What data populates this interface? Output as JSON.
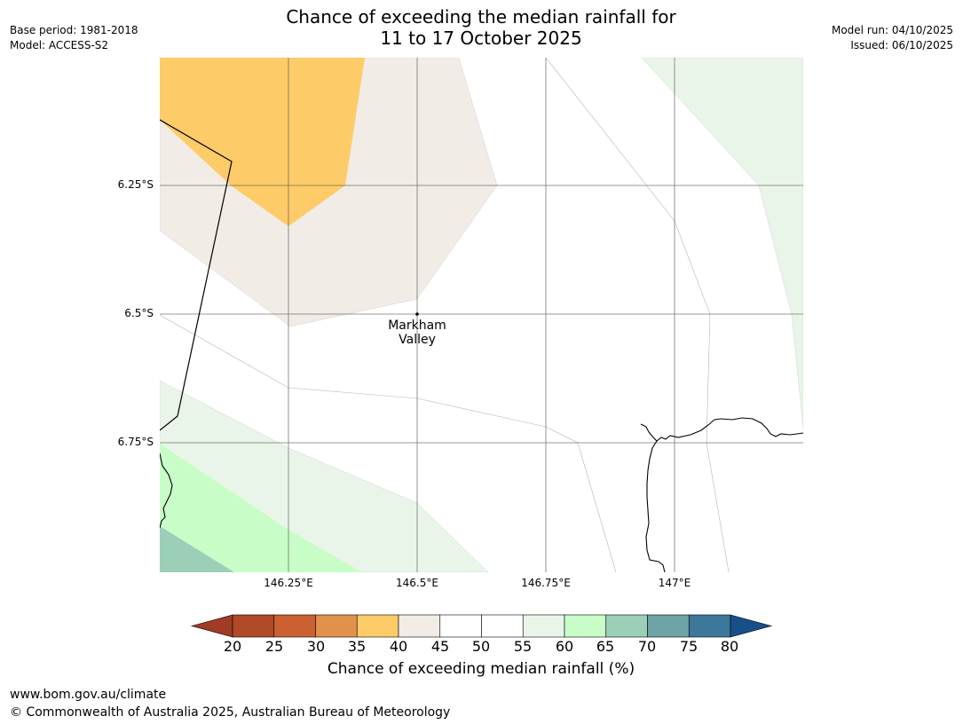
{
  "title": {
    "line1": "Chance of exceeding the median rainfall for",
    "line2": "11 to 17 October 2025"
  },
  "meta_left": {
    "base_period": "Base period: 1981-2018",
    "model": "Model: ACCESS-S2"
  },
  "meta_right": {
    "model_run": "Model run: 04/10/2025",
    "issued": "Issued: 06/10/2025"
  },
  "map": {
    "lat_labels": [
      "6.25°S",
      "6.5°S",
      "6.75°S"
    ],
    "lon_labels": [
      "146.25°E",
      "146.5°E",
      "146.75°E",
      "147°E"
    ],
    "place": {
      "name_line1": "Markham",
      "name_line2": "Valley"
    },
    "colors": {
      "band_35_40": "#fecb69",
      "band_40_45": "#f1ece6",
      "band_55_60": "#eaf5e9",
      "band_60_65": "#c9fdc8",
      "band_65_70": "#9ccfb8"
    }
  },
  "colorbar": {
    "label": "Chance of exceeding median rainfall (%)",
    "ticks": [
      "20",
      "25",
      "30",
      "35",
      "40",
      "45",
      "50",
      "55",
      "60",
      "65",
      "70",
      "75",
      "80"
    ],
    "colors": [
      "#a13b26",
      "#b04a26",
      "#cb6130",
      "#e1914a",
      "#fecb69",
      "#f1ece6",
      "#ffffff",
      "#ffffff",
      "#eaf5e9",
      "#c9fdc8",
      "#9ccfb8",
      "#6ea4a6",
      "#3d7799",
      "#174f89"
    ]
  },
  "footer": {
    "url": "www.bom.gov.au/climate",
    "copyright": "© Commonwealth of Australia 2025, Australian Bureau of Meteorology"
  }
}
